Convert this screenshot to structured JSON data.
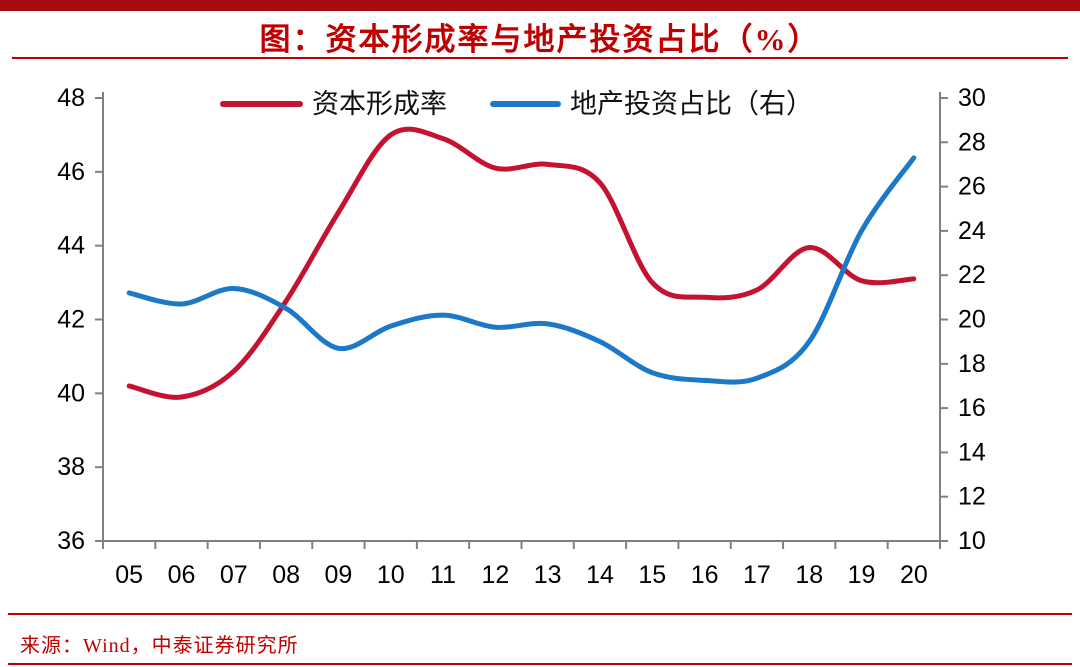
{
  "page": {
    "title": "图：资本形成率与地产投资占比（%）",
    "source": "来源：Wind，中泰证券研究所",
    "colors": {
      "top_bar": "#A50D12",
      "accent_red": "#C00000",
      "series_red": "#C41230",
      "series_blue": "#1C79C7",
      "axis_gray": "#808080"
    }
  },
  "chart_data": {
    "type": "line",
    "title": "图：资本形成率与地产投资占比（%）",
    "categories": [
      "05",
      "06",
      "07",
      "08",
      "09",
      "10",
      "11",
      "12",
      "13",
      "14",
      "15",
      "16",
      "17",
      "18",
      "19",
      "20"
    ],
    "series": [
      {
        "name": "资本形成率",
        "axis": "left",
        "color": "#C41230",
        "values": [
          40.2,
          39.9,
          40.6,
          42.5,
          44.9,
          47.0,
          46.9,
          46.1,
          46.2,
          45.7,
          43.0,
          42.6,
          42.8,
          43.95,
          43.05,
          43.1
        ]
      },
      {
        "name": "地产投资占比（右）",
        "axis": "right",
        "color": "#1C79C7",
        "values": [
          21.2,
          20.7,
          21.4,
          20.5,
          18.7,
          19.7,
          20.2,
          19.65,
          19.8,
          19.0,
          17.6,
          17.25,
          17.35,
          19.0,
          24.0,
          27.3
        ]
      }
    ],
    "left_axis": {
      "min": 36,
      "max": 48,
      "step": 2,
      "ticks": [
        48,
        46,
        44,
        42,
        40,
        38,
        36
      ]
    },
    "right_axis": {
      "min": 10,
      "max": 30,
      "step": 2,
      "ticks": [
        30,
        28,
        26,
        24,
        22,
        20,
        18,
        16,
        14,
        12,
        10
      ]
    },
    "legend_position": "top",
    "grid": false
  }
}
